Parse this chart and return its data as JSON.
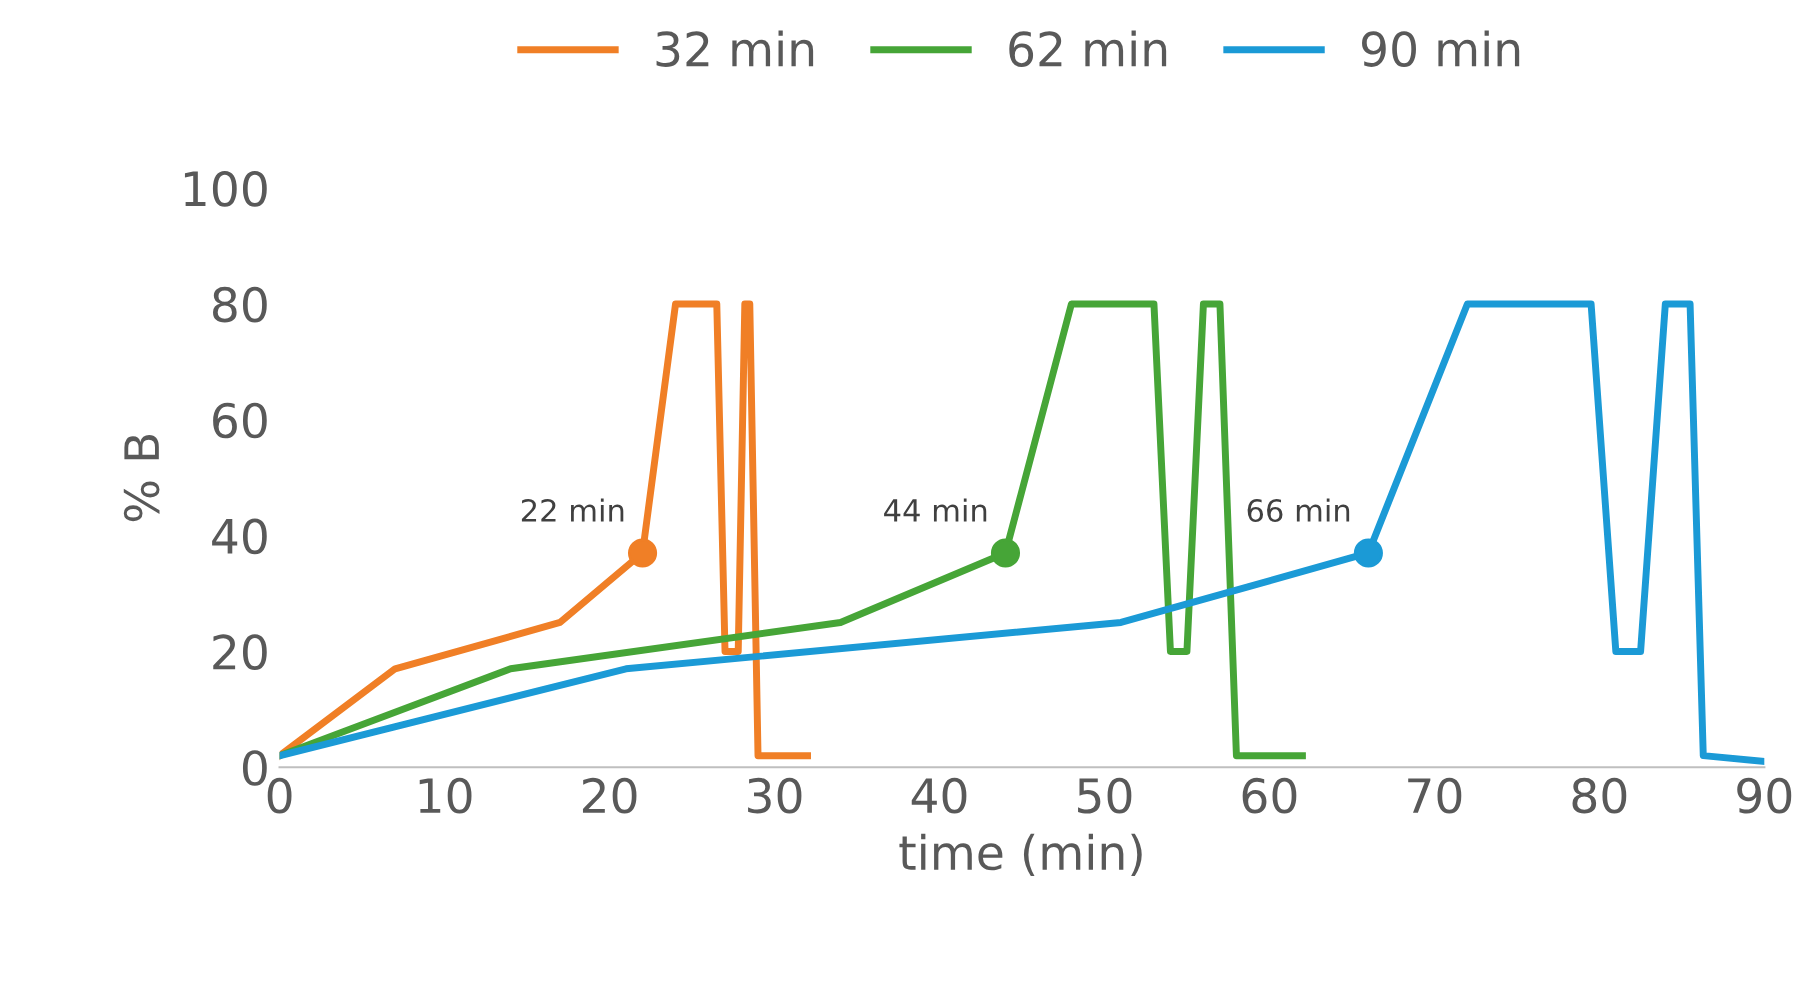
{
  "chart_data": {
    "type": "line",
    "xlabel": "time (min)",
    "ylabel": "% B",
    "xlim": [
      0,
      90
    ],
    "ylim": [
      0,
      100
    ],
    "xticks": [
      0,
      10,
      20,
      30,
      40,
      50,
      60,
      70,
      80,
      90
    ],
    "yticks": [
      0,
      20,
      40,
      60,
      80,
      100
    ],
    "grid": false,
    "legend": "top",
    "marker": "none",
    "line_style": "solid",
    "series": [
      {
        "name": "32 min",
        "color": "#f07f26",
        "x": [
          0,
          7,
          17,
          22,
          24,
          26.5,
          27,
          27.8,
          28.2,
          28.5,
          29,
          32
        ],
        "values": [
          2,
          17,
          25,
          37,
          80,
          80,
          20,
          20,
          80,
          80,
          2,
          2
        ]
      },
      {
        "name": "62 min",
        "color": "#46a537",
        "x": [
          0,
          14,
          34,
          44,
          48,
          53,
          54,
          55,
          56,
          57,
          58,
          62
        ],
        "values": [
          2,
          17,
          25,
          37,
          80,
          80,
          20,
          20,
          80,
          80,
          2,
          2
        ]
      },
      {
        "name": "90 min",
        "color": "#1b9ad6",
        "x": [
          0,
          21,
          51,
          66,
          72,
          79.5,
          81,
          82.5,
          84,
          85.5,
          86.3,
          90
        ],
        "values": [
          2,
          17,
          25,
          37,
          80,
          80,
          20,
          20,
          80,
          80,
          2,
          1
        ]
      },
      {
        "type": "scatter",
        "marker": "circle",
        "color": "#f07f26",
        "x": [
          22
        ],
        "values": [
          37
        ]
      },
      {
        "type": "scatter",
        "marker": "circle",
        "color": "#46a537",
        "x": [
          44
        ],
        "values": [
          37
        ]
      },
      {
        "type": "scatter",
        "marker": "circle",
        "color": "#1b9ad6",
        "x": [
          66
        ],
        "values": [
          37
        ]
      }
    ],
    "annotations": [
      {
        "text": "22 min",
        "x": 22,
        "y": 37
      },
      {
        "text": "44 min",
        "x": 44,
        "y": 37
      },
      {
        "text": "66 min",
        "x": 66,
        "y": 37
      }
    ]
  }
}
